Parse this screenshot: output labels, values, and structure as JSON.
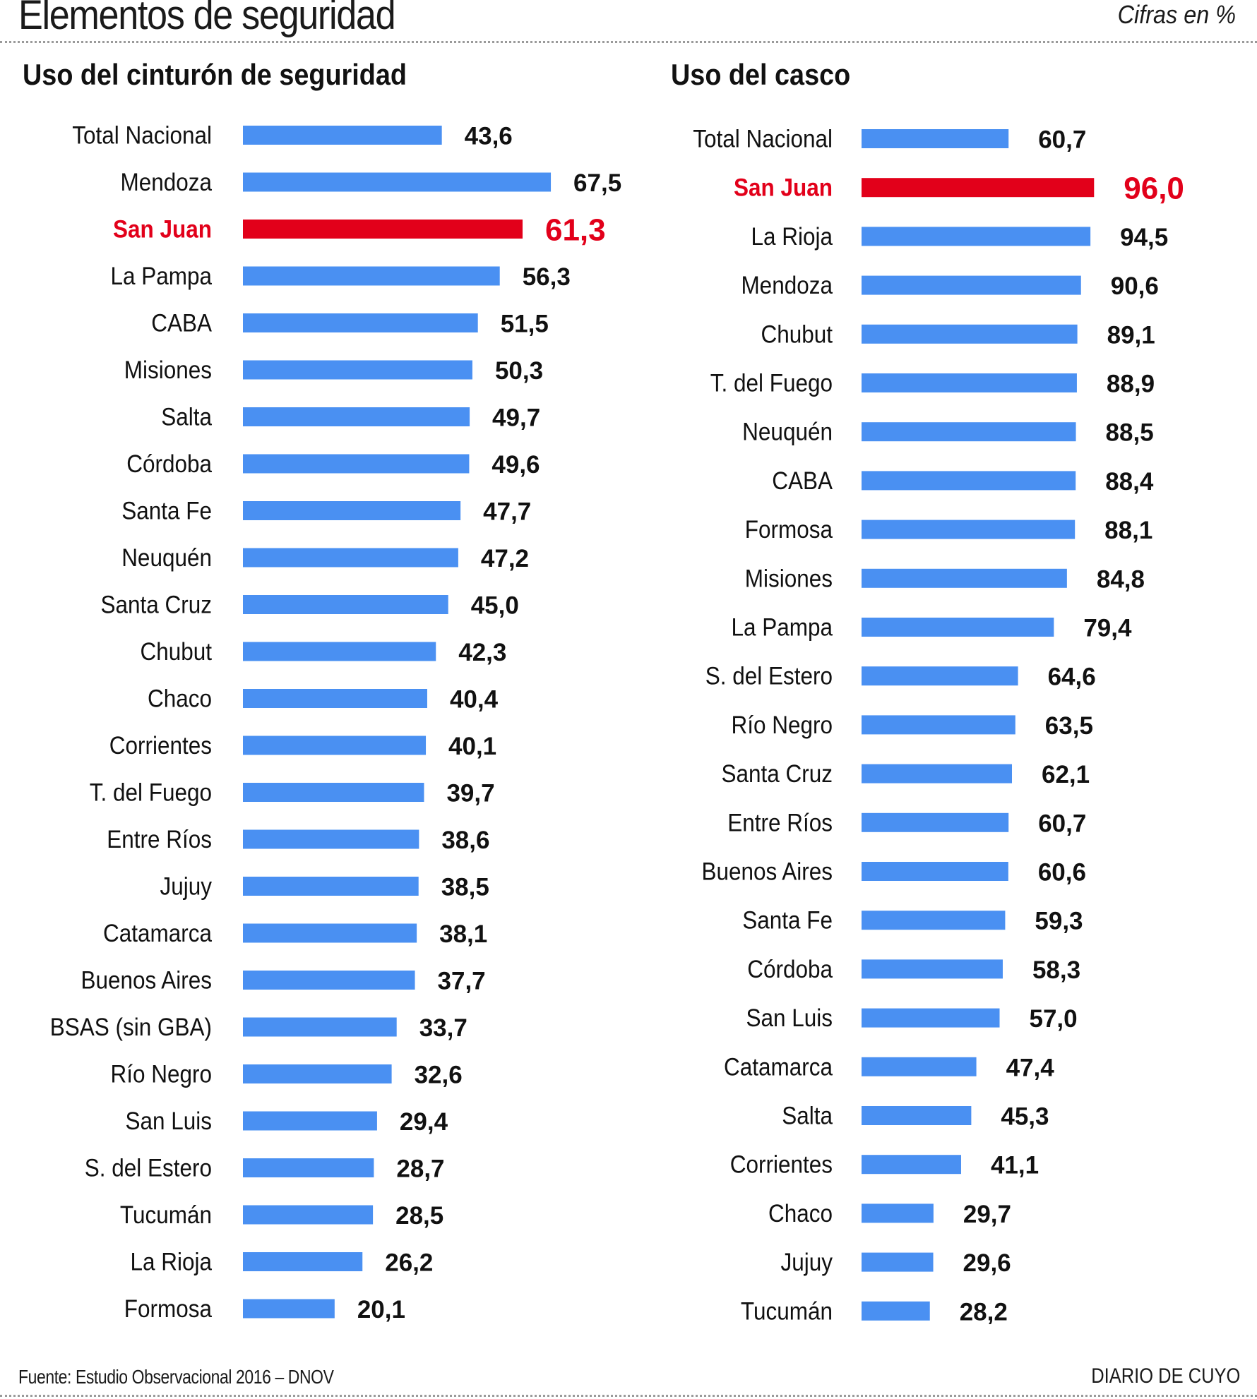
{
  "header": {
    "title": "Elementos de seguridad",
    "units_note": "Cifras en %"
  },
  "footer": {
    "source": "Fuente: Estudio Observacional 2016 – DNOV",
    "brand": "DIARIO DE CUYO"
  },
  "colors": {
    "bar": "#4a90f2",
    "highlight": "#e2001a",
    "text": "#111111"
  },
  "chart_data": [
    {
      "type": "bar",
      "orientation": "horizontal",
      "title": "Uso del cinturón de seguridad",
      "unit": "%",
      "highlight": "San Juan",
      "xlabel": "",
      "ylabel": "",
      "grid": false,
      "categories": [
        "Total Nacional",
        "Mendoza",
        "San Juan",
        "La Pampa",
        "CABA",
        "Misiones",
        "Salta",
        "Córdoba",
        "Santa Fe",
        "Neuquén",
        "Santa Cruz",
        "Chubut",
        "Chaco",
        "Corrientes",
        "T. del Fuego",
        "Entre Ríos",
        "Jujuy",
        "Catamarca",
        "Buenos Aires",
        "BSAS (sin GBA)",
        "Río Negro",
        "San Luis",
        "S. del Estero",
        "Tucumán",
        "La Rioja",
        "Formosa"
      ],
      "values": [
        43.6,
        67.5,
        61.3,
        56.3,
        51.5,
        50.3,
        49.7,
        49.6,
        47.7,
        47.2,
        45.0,
        42.3,
        40.4,
        40.1,
        39.7,
        38.6,
        38.5,
        38.1,
        37.7,
        33.7,
        32.6,
        29.4,
        28.7,
        28.5,
        26.2,
        20.1
      ],
      "value_labels": [
        "43,6",
        "67,5",
        "61,3",
        "56,3",
        "51,5",
        "50,3",
        "49,7",
        "49,6",
        "47,7",
        "47,2",
        "45,0",
        "42,3",
        "40,4",
        "40,1",
        "39,7",
        "38,6",
        "38,5",
        "38,1",
        "37,7",
        "33,7",
        "32,6",
        "29,4",
        "28,7",
        "28,5",
        "26,2",
        "20,1"
      ]
    },
    {
      "type": "bar",
      "orientation": "horizontal",
      "title": "Uso del casco",
      "unit": "%",
      "highlight": "San Juan",
      "xlabel": "",
      "ylabel": "",
      "grid": false,
      "categories": [
        "Total Nacional",
        "San Juan",
        "La Rioja",
        "Mendoza",
        "Chubut",
        "T. del Fuego",
        "Neuquén",
        "CABA",
        "Formosa",
        "Misiones",
        "La Pampa",
        "S. del Estero",
        "Río Negro",
        "Santa Cruz",
        "Entre Ríos",
        "Buenos Aires",
        "Santa Fe",
        "Córdoba",
        "San Luis",
        "Catamarca",
        "Salta",
        "Corrientes",
        "Chaco",
        "Jujuy",
        "Tucumán"
      ],
      "values": [
        60.7,
        96.0,
        94.5,
        90.6,
        89.1,
        88.9,
        88.5,
        88.4,
        88.1,
        84.8,
        79.4,
        64.6,
        63.5,
        62.1,
        60.7,
        60.6,
        59.3,
        58.3,
        57.0,
        47.4,
        45.3,
        41.1,
        29.7,
        29.6,
        28.2
      ],
      "value_labels": [
        "60,7",
        "96,0",
        "94,5",
        "90,6",
        "89,1",
        "88,9",
        "88,5",
        "88,4",
        "88,1",
        "84,8",
        "79,4",
        "64,6",
        "63,5",
        "62,1",
        "60,7",
        "60,6",
        "59,3",
        "58,3",
        "57,0",
        "47,4",
        "45,3",
        "41,1",
        "29,7",
        "29,6",
        "28,2"
      ]
    }
  ]
}
